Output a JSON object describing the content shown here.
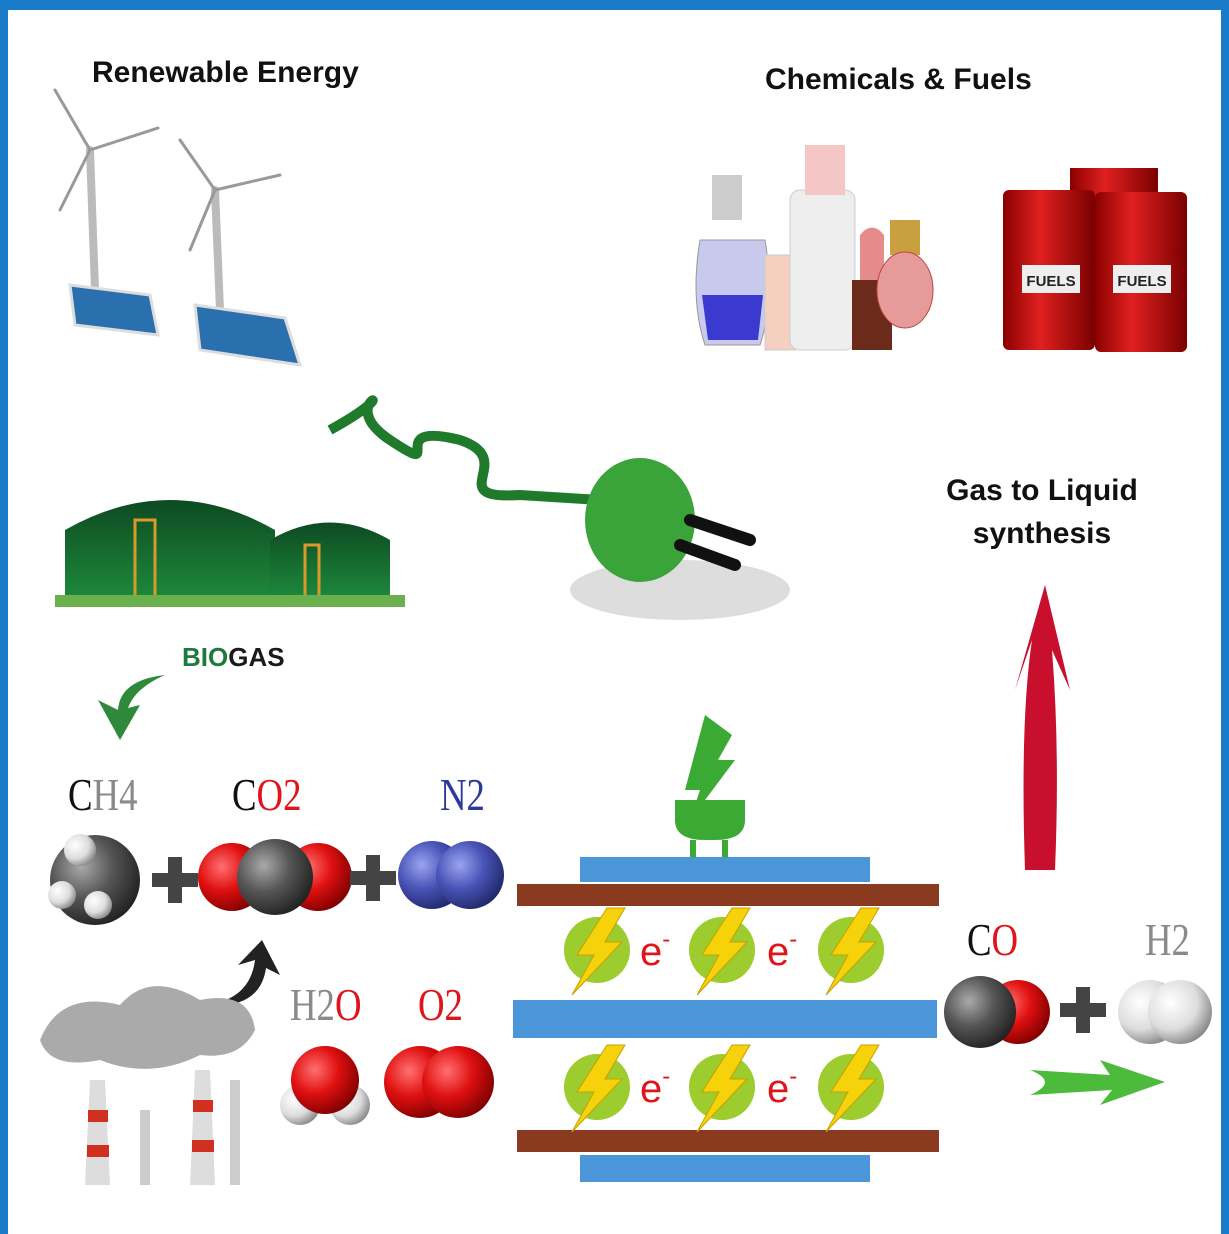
{
  "titles": {
    "renewable": "Renewable Energy",
    "chemicals": "Chemicals & Fuels",
    "gtl": [
      "Gas to Liquid",
      "synthesis"
    ]
  },
  "biogas": [
    {
      "text": "BIO",
      "color": "#1e7a3c"
    },
    {
      "text": "GAS",
      "color": "#1a1a1a"
    }
  ],
  "barrels": [
    "FUELS",
    "FUELS"
  ],
  "formulas": [
    {
      "parts": [
        {
          "text": "C",
          "color": "#111111"
        },
        {
          "text": "H4",
          "color": "#8a8a8a"
        }
      ]
    },
    {
      "parts": [
        {
          "text": "C",
          "color": "#111111"
        },
        {
          "text": "O2",
          "color": "#e0141b"
        }
      ]
    },
    {
      "parts": [
        {
          "text": "N2",
          "color": "#2b3a9c"
        }
      ]
    },
    {
      "parts": [
        {
          "text": "H2",
          "color": "#8a8a8a"
        },
        {
          "text": "O",
          "color": "#e0141b"
        }
      ]
    },
    {
      "parts": [
        {
          "text": "O2",
          "color": "#e0141b"
        }
      ]
    },
    {
      "parts": [
        {
          "text": "C",
          "color": "#111111"
        },
        {
          "text": "O",
          "color": "#e0141b"
        }
      ]
    },
    {
      "parts": [
        {
          "text": "H2",
          "color": "#8a8a8a"
        }
      ]
    }
  ],
  "electrons": [
    {
      "symbol": "e",
      "charge": "-"
    },
    {
      "symbol": "e",
      "charge": "-"
    },
    {
      "symbol": "e",
      "charge": "-"
    },
    {
      "symbol": "e",
      "charge": "-"
    }
  ]
}
